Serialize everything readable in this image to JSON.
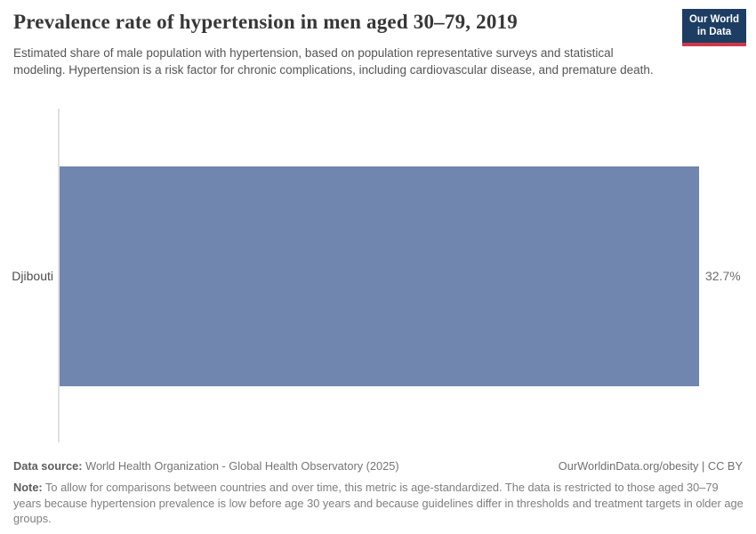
{
  "header": {
    "title": "Prevalence rate of hypertension in men aged 30–79, 2019",
    "subtitle": "Estimated share of male population with hypertension, based on population representative surveys and statistical modeling. Hypertension is a risk factor for chronic complications, including cardiovascular disease, and premature death.",
    "logo_line1": "Our World",
    "logo_line2": "in Data",
    "logo_bg_color": "#1d3d63",
    "logo_accent_color": "#cf3848"
  },
  "chart_data": {
    "type": "bar",
    "orientation": "horizontal",
    "title": "Prevalence rate of hypertension in men aged 30–79, 2019",
    "categories": [
      "Djibouti"
    ],
    "values": [
      32.7
    ],
    "value_labels": [
      "32.7%"
    ],
    "unit": "%",
    "xmax": 32.7,
    "xlabel": "",
    "ylabel": "",
    "axis_ticks_shown": false,
    "grid": false,
    "legend": "none",
    "bar_color": "#7186ae"
  },
  "footer": {
    "data_source_label": "Data source:",
    "data_source_text": "World Health Organization - Global Health Observatory (2025)",
    "attribution": "OurWorldinData.org/obesity | CC BY",
    "note_label": "Note:",
    "note_text": "To allow for comparisons between countries and over time, this metric is age-standardized. The data is restricted to those aged 30–79 years because hypertension prevalence is low before age 30 years and because guidelines differ in thresholds and treatment targets in older age groups."
  }
}
